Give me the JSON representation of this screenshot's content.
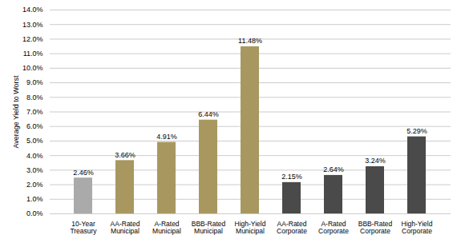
{
  "chart_data": {
    "type": "bar",
    "categories": [
      "10-Year\nTreasury",
      "AA-Rated\nMunicipal",
      "A-Rated\nMunicipal",
      "BBB-Rated\nMunicipal",
      "High-Yield\nMunicipal",
      "AA-Rated\nCorporate",
      "A-Rated\nCorporate",
      "BBB-Rated\nCorporate",
      "High-Yield\nCorporate"
    ],
    "values": [
      2.46,
      3.66,
      4.91,
      6.44,
      11.48,
      2.15,
      2.64,
      3.24,
      5.29
    ],
    "value_labels": [
      "2.46%",
      "3.66%",
      "4.91%",
      "6.44%",
      "11.48%",
      "2.15%",
      "2.64%",
      "3.24%",
      "5.29%"
    ],
    "colors": [
      "#aaaaaa",
      "#a89860",
      "#a89860",
      "#a89860",
      "#a89860",
      "#4a4a4a",
      "#4a4a4a",
      "#4a4a4a",
      "#4a4a4a"
    ],
    "ylabel": "Average Yield to Worst",
    "ylim": [
      0,
      14.0
    ],
    "yticks": [
      {
        "value": 0,
        "label": "0.0%"
      },
      {
        "value": 1,
        "label": "1.0%"
      },
      {
        "value": 2,
        "label": "2.0%"
      },
      {
        "value": 3,
        "label": "3.0%"
      },
      {
        "value": 4,
        "label": "4.0%"
      },
      {
        "value": 5,
        "label": "5.0%"
      },
      {
        "value": 6,
        "label": "6.0%"
      },
      {
        "value": 7,
        "label": "7.0%"
      },
      {
        "value": 8,
        "label": "8.0%"
      },
      {
        "value": 9,
        "label": "9.0%"
      },
      {
        "value": 10,
        "label": "10.0%"
      },
      {
        "value": 11,
        "label": "11.0%"
      },
      {
        "value": 12,
        "label": "12.0%"
      },
      {
        "value": 13,
        "label": "13.0%"
      },
      {
        "value": 14,
        "label": "14.0%"
      }
    ],
    "grid": true,
    "data_labels": true
  }
}
